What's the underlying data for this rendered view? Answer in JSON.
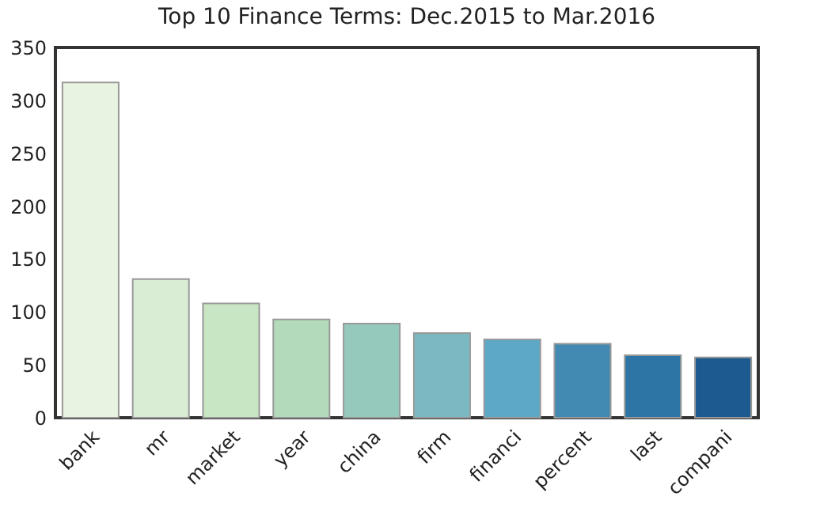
{
  "chart_data": {
    "type": "bar",
    "title": "Top 10 Finance Terms: Dec.2015 to Mar.2016",
    "categories": [
      "bank",
      "mr",
      "market",
      "year",
      "china",
      "firm",
      "financi",
      "percent",
      "last",
      "compani"
    ],
    "values": [
      317,
      131,
      108,
      93,
      89,
      80,
      74,
      70,
      59,
      57
    ],
    "colors": [
      "#e8f3e1",
      "#d9edd5",
      "#c8e6c3",
      "#b2dabb",
      "#94c9bc",
      "#7ab9c1",
      "#5ca8c6",
      "#428ab1",
      "#2c75a4",
      "#1d5a8f"
    ],
    "ylim": [
      0,
      350
    ],
    "yticks": [
      0,
      50,
      100,
      150,
      200,
      250,
      300,
      350
    ],
    "grid": false
  }
}
